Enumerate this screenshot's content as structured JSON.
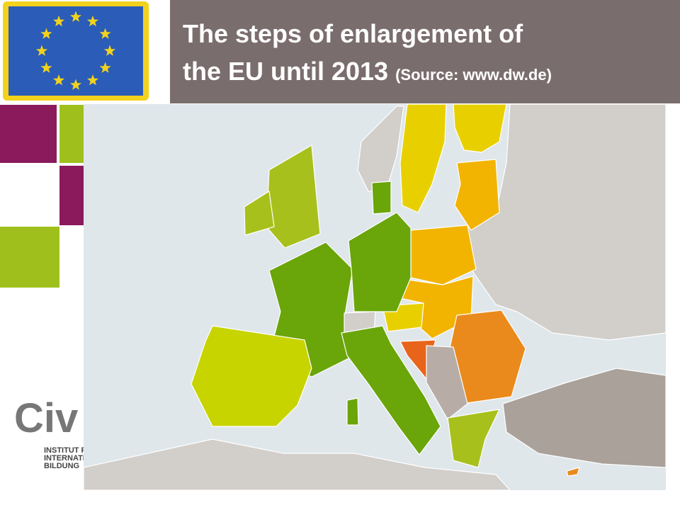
{
  "header": {
    "title_line1": "The steps of enlargement of",
    "title_line2": "the EU until 2013",
    "source": "(Source: www.dw.de)"
  },
  "logo": {
    "name": "Civ",
    "lines": [
      "INSTITUT F",
      "INTERNATI",
      "BILDUNG"
    ]
  }
}
